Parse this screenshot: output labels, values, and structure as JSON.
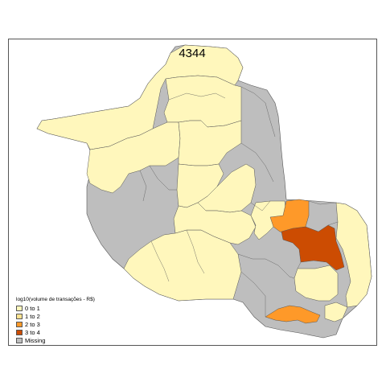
{
  "map": {
    "title": "4344",
    "legend": {
      "title": "log10(volume de transações - R$)",
      "items": [
        {
          "label": "0 to 1",
          "color": "#FFF7BC"
        },
        {
          "label": "1 to 2",
          "color": "#FEE391"
        },
        {
          "label": "2 to 3",
          "color": "#FE9929"
        },
        {
          "label": "3 to 4",
          "color": "#CC4C02"
        },
        {
          "label": "Missing",
          "color": "#BEBEBE"
        }
      ]
    },
    "colors": {
      "border": "#555555",
      "class_0_1": "#FFF7BC",
      "class_1_2": "#FEE391",
      "class_2_3": "#FE9929",
      "class_3_4": "#CC4C02",
      "missing": "#BEBEBE"
    }
  }
}
